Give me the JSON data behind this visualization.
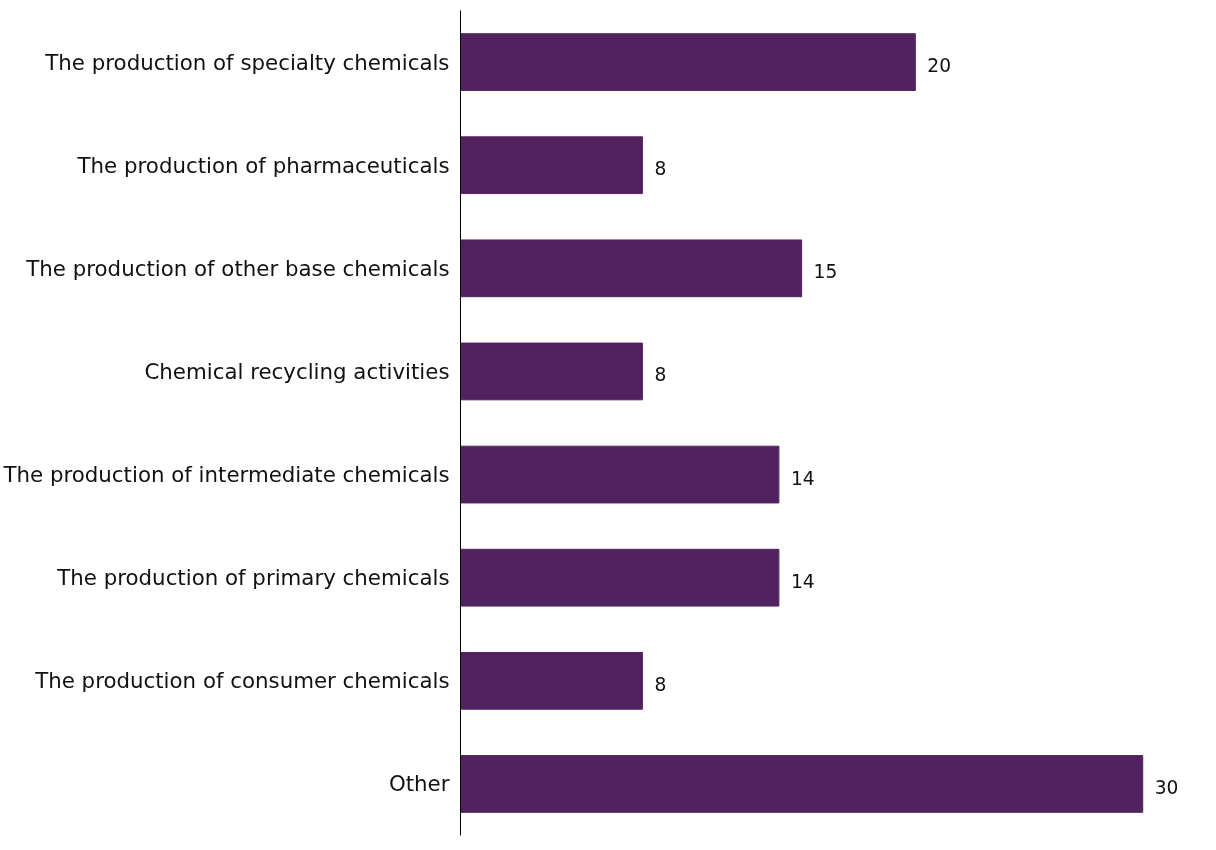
{
  "chart_data": {
    "type": "bar",
    "orientation": "horizontal",
    "categories": [
      "The production of specialty chemicals",
      "The production of pharmaceuticals",
      "The production of other base chemicals",
      "Chemical recycling activities",
      "The production of intermediate chemicals",
      "The production of primary chemicals",
      "The production of consumer chemicals",
      "Other"
    ],
    "values": [
      20,
      8,
      15,
      8,
      14,
      14,
      8,
      30
    ],
    "color": "#52225f",
    "data_labels": true
  }
}
